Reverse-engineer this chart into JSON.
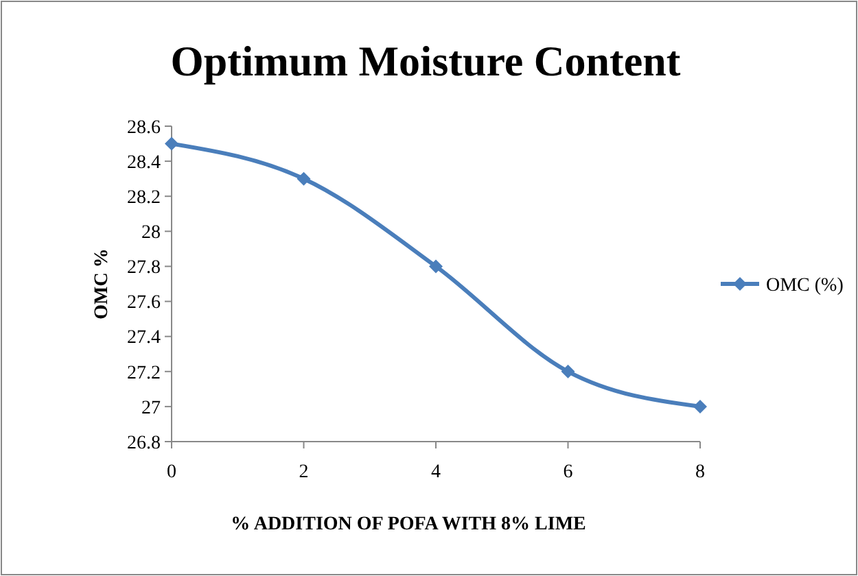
{
  "chart_data": {
    "type": "line",
    "title": "Optimum Moisture Content",
    "xlabel": "% ADDITION OF POFA WITH 8% LIME",
    "ylabel": "OMC %",
    "x": [
      0,
      2,
      4,
      6,
      8
    ],
    "series": [
      {
        "name": "OMC (%)",
        "color": "#4a7ebb",
        "values": [
          28.5,
          28.3,
          27.8,
          27.2,
          27.0
        ]
      }
    ],
    "xlim": [
      0,
      8
    ],
    "xticks": [
      0,
      2,
      4,
      6,
      8
    ],
    "ylim": [
      26.8,
      28.6
    ],
    "yticks": [
      26.8,
      27,
      27.2,
      27.4,
      27.6,
      27.8,
      28,
      28.2,
      28.4,
      28.6
    ],
    "grid": false,
    "legend": "right",
    "marker": "diamond",
    "line_style": "solid"
  }
}
